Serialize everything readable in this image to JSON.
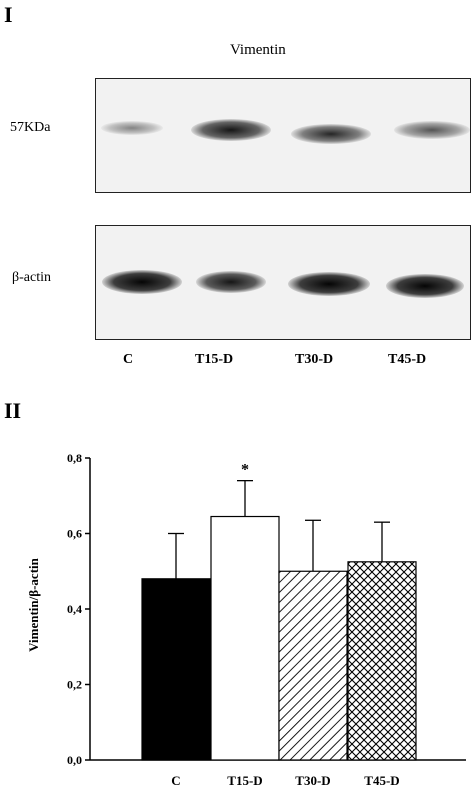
{
  "panels": {
    "panel1": "I",
    "panel2": "II"
  },
  "blot": {
    "title": "Vimentin",
    "marker_label": "57KDa",
    "loading_label": "β-actin",
    "lanes": [
      "C",
      "T15-D",
      "T30-D",
      "T45-D"
    ],
    "band_intensity_vimentin": [
      0.35,
      0.85,
      0.7,
      0.5
    ],
    "band_intensity_actin": [
      0.95,
      0.85,
      0.9,
      0.9
    ]
  },
  "chart_data": {
    "type": "bar",
    "categories": [
      "C",
      "T15-D",
      "T30-D",
      "T45-D"
    ],
    "values": [
      0.48,
      0.645,
      0.5,
      0.525
    ],
    "errors": [
      0.12,
      0.095,
      0.135,
      0.105
    ],
    "significance": [
      "",
      "*",
      "",
      ""
    ],
    "fills": [
      "solid-black",
      "white",
      "diagonal-hatch",
      "cross-hatch"
    ],
    "ylabel": "Vimentin/β-actin",
    "ylim": [
      0,
      0.8
    ],
    "yticks": [
      0,
      0.2,
      0.4,
      0.6,
      0.8
    ],
    "ytick_labels": [
      "0,0",
      "0,2",
      "0,4",
      "0,6",
      "0,8"
    ],
    "grid": false
  }
}
